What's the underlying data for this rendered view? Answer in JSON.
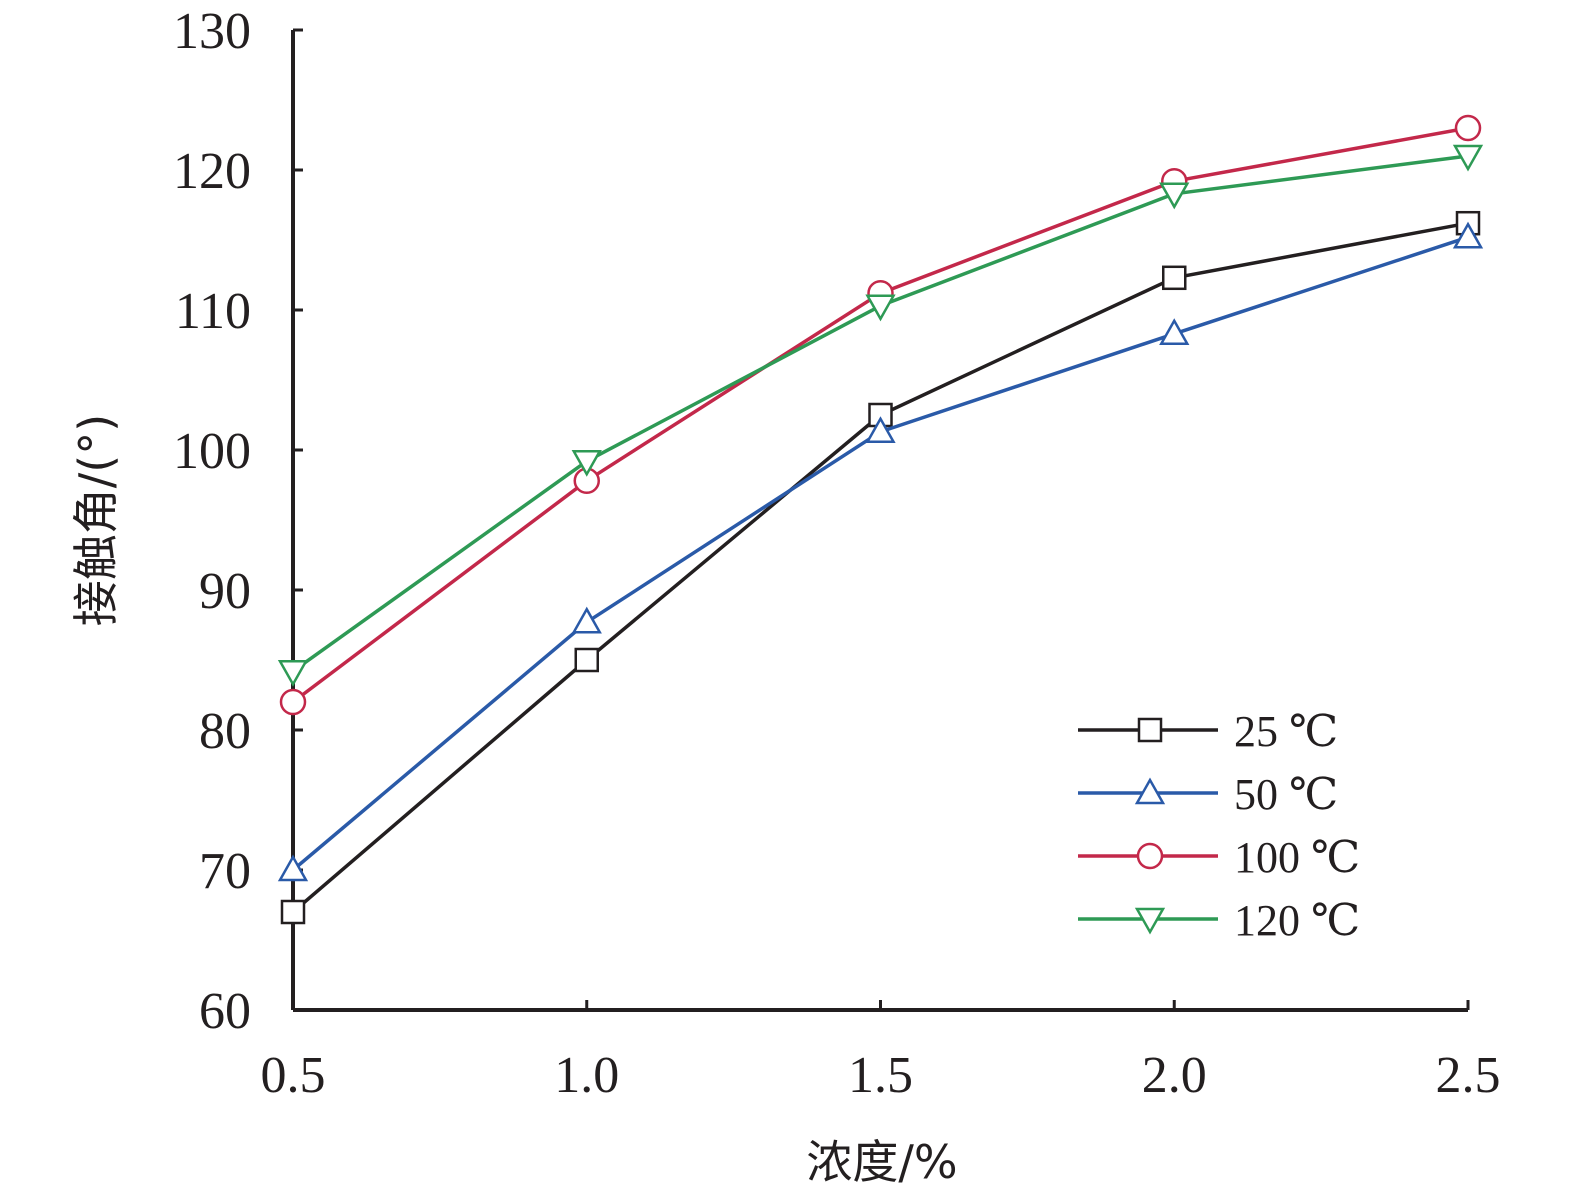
{
  "chart_data": {
    "type": "line",
    "xlabel": "浓度/%",
    "ylabel": "接触角/(°)",
    "xlim": [
      0.5,
      2.5
    ],
    "ylim": [
      60,
      130
    ],
    "x_ticks": [
      "0.5",
      "1.0",
      "1.5",
      "2.0",
      "2.5"
    ],
    "y_ticks": [
      "60",
      "70",
      "80",
      "90",
      "100",
      "110",
      "120",
      "130"
    ],
    "grid": false,
    "legend_position": "bottom-right",
    "x": [
      0.5,
      1.0,
      1.5,
      2.0,
      2.5
    ],
    "series": [
      {
        "name": "25 ℃",
        "color": "#231f20",
        "marker": "square",
        "values": [
          67,
          85,
          102.5,
          112.3,
          116.2
        ]
      },
      {
        "name": "50 ℃",
        "color": "#2a5aa8",
        "marker": "triangle-up",
        "values": [
          70,
          87.7,
          101.3,
          108.3,
          115.2
        ]
      },
      {
        "name": "100 ℃",
        "color": "#c3284a",
        "marker": "circle",
        "values": [
          82,
          97.8,
          111.2,
          119.2,
          123
        ]
      },
      {
        "name": "120 ℃",
        "color": "#2e9a55",
        "marker": "triangle-down",
        "values": [
          84.2,
          99.2,
          110.3,
          118.3,
          121
        ]
      }
    ]
  }
}
